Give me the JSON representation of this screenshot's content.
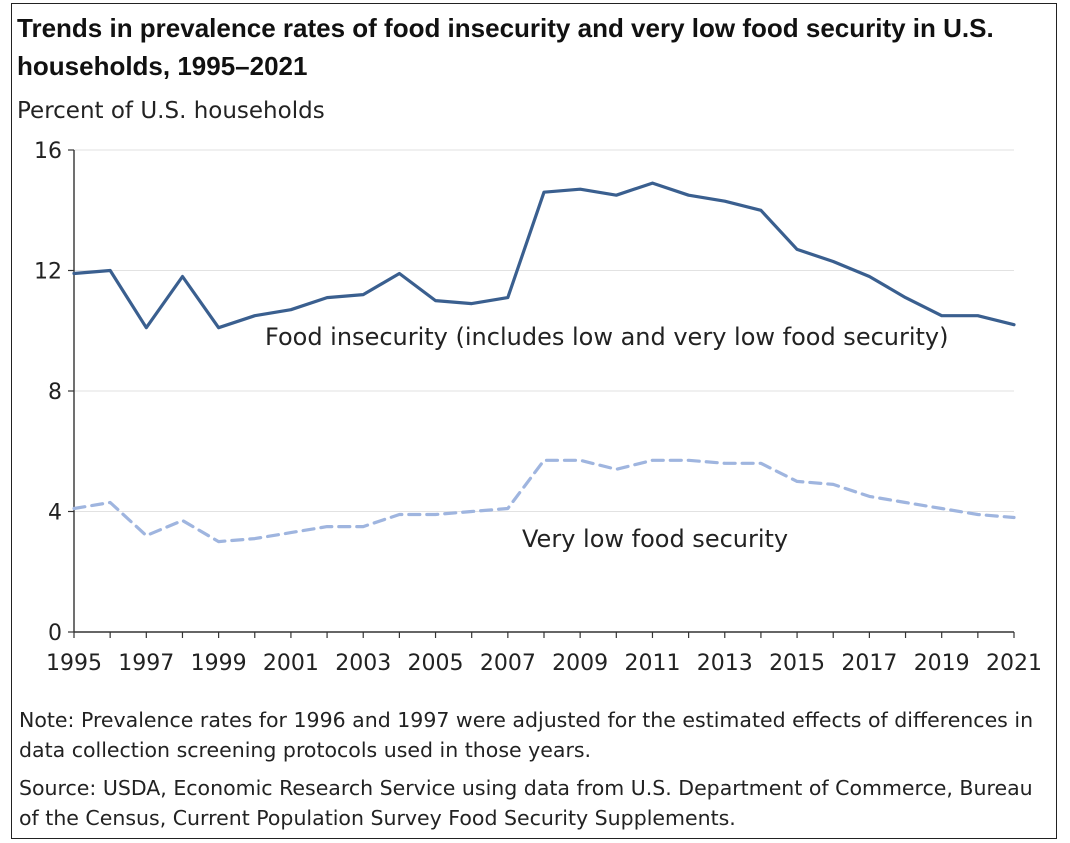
{
  "chart_data": {
    "type": "line",
    "title": "Trends in prevalence rates of food insecurity and very low food security in U.S. households, 1995–2021",
    "ylabel": "Percent of U.S. households",
    "xlabel": "",
    "ylim": [
      0,
      16
    ],
    "yticks": [
      0,
      4,
      8,
      12,
      16
    ],
    "xlim": [
      1995,
      2021
    ],
    "xticks": [
      1995,
      1997,
      1999,
      2001,
      2003,
      2005,
      2007,
      2009,
      2011,
      2013,
      2015,
      2017,
      2019,
      2021
    ],
    "grid": "horizontal",
    "x": [
      1995,
      1996,
      1997,
      1998,
      1999,
      2000,
      2001,
      2002,
      2003,
      2004,
      2005,
      2006,
      2007,
      2008,
      2009,
      2010,
      2011,
      2012,
      2013,
      2014,
      2015,
      2016,
      2017,
      2018,
      2019,
      2020,
      2021
    ],
    "series": [
      {
        "name": "Food insecurity (includes low and very low food security)",
        "color": "#3a5f8f",
        "style": "solid",
        "values": [
          11.9,
          12.0,
          10.1,
          11.8,
          10.1,
          10.5,
          10.7,
          11.1,
          11.2,
          11.9,
          11.0,
          10.9,
          11.1,
          14.6,
          14.7,
          14.5,
          14.9,
          14.5,
          14.3,
          14.0,
          12.7,
          12.3,
          11.8,
          11.1,
          10.5,
          10.5,
          10.2
        ]
      },
      {
        "name": "Very low food security",
        "color": "#9fb5df",
        "style": "dashed",
        "values": [
          4.1,
          4.3,
          3.2,
          3.7,
          3.0,
          3.1,
          3.3,
          3.5,
          3.5,
          3.9,
          3.9,
          4.0,
          4.1,
          5.7,
          5.7,
          5.4,
          5.7,
          5.7,
          5.6,
          5.6,
          5.0,
          4.9,
          4.5,
          4.3,
          4.1,
          3.9,
          3.8
        ]
      }
    ]
  },
  "note": "Note: Prevalence rates for 1996 and 1997 were adjusted for the estimated effects of differences in data collection screening protocols used in those years.",
  "source": "Source: USDA, Economic Research Service using data from U.S. Department of Commerce, Bureau of the Census, Current Population Survey Food Security Supplements."
}
